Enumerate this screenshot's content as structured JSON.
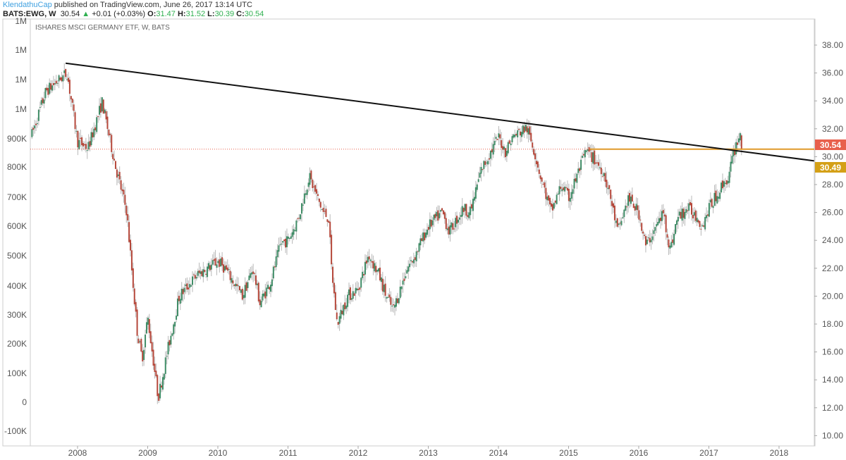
{
  "header": {
    "publisher": "KlendathuCap",
    "published_text": "published on TradingView.com, June 26, 2017 13:14 UTC",
    "symbol": "BATS:EWG, W",
    "last": "30.54",
    "change": "+0.01 (+0.03%)",
    "open_label": "O:",
    "open": "31.47",
    "high_label": "H:",
    "high": "31.52",
    "low_label": "L:",
    "low": "30.39",
    "close_label": "C:",
    "close": "30.54"
  },
  "chart_data": {
    "type": "candlestick",
    "title": "ISHARES MSCI GERMANY ETF, W, BATS",
    "x_ticks": [
      "2008",
      "2009",
      "2010",
      "2011",
      "2012",
      "2013",
      "2014",
      "2015",
      "2016",
      "2017",
      "2018"
    ],
    "right_axis_ticks": [
      "38.00",
      "36.00",
      "34.00",
      "32.00",
      "30.00",
      "28.00",
      "26.00",
      "24.00",
      "22.00",
      "20.00",
      "18.00",
      "16.00",
      "14.00",
      "12.00",
      "10.00"
    ],
    "left_axis_ticks": [
      "1M",
      "1M",
      "1M",
      "1M",
      "900K",
      "800K",
      "700K",
      "600K",
      "500K",
      "400K",
      "300K",
      "200K",
      "100K",
      "0",
      "-100K"
    ],
    "ylim": [
      9.2,
      39.8
    ],
    "xlim": [
      2007.33,
      2018.5
    ],
    "price_path": [
      [
        2007.35,
        31.6
      ],
      [
        2007.55,
        34.7
      ],
      [
        2007.85,
        36.0
      ],
      [
        2008.0,
        31.1
      ],
      [
        2008.15,
        30.6
      ],
      [
        2008.35,
        33.9
      ],
      [
        2008.55,
        29.1
      ],
      [
        2008.7,
        26.1
      ],
      [
        2008.78,
        21.5
      ],
      [
        2008.85,
        17.5
      ],
      [
        2008.92,
        15.5
      ],
      [
        2009.0,
        18.5
      ],
      [
        2009.15,
        12.7
      ],
      [
        2009.3,
        16.5
      ],
      [
        2009.45,
        20
      ],
      [
        2009.7,
        21.5
      ],
      [
        2010.0,
        22.5
      ],
      [
        2010.1,
        22
      ],
      [
        2010.35,
        20
      ],
      [
        2010.5,
        22
      ],
      [
        2010.6,
        19.5
      ],
      [
        2010.75,
        21
      ],
      [
        2010.9,
        23.8
      ],
      [
        2011.0,
        24
      ],
      [
        2011.15,
        25.6
      ],
      [
        2011.3,
        28.6
      ],
      [
        2011.5,
        26
      ],
      [
        2011.58,
        25.6
      ],
      [
        2011.62,
        22
      ],
      [
        2011.7,
        18
      ],
      [
        2011.85,
        20
      ],
      [
        2012.0,
        20.5
      ],
      [
        2012.15,
        23
      ],
      [
        2012.3,
        21.5
      ],
      [
        2012.4,
        20
      ],
      [
        2012.5,
        19
      ],
      [
        2012.7,
        22
      ],
      [
        2012.8,
        22.8
      ],
      [
        2013.0,
        25
      ],
      [
        2013.2,
        26
      ],
      [
        2013.3,
        24.6
      ],
      [
        2013.5,
        26.3
      ],
      [
        2013.6,
        26
      ],
      [
        2013.75,
        29
      ],
      [
        2014.0,
        31.4
      ],
      [
        2014.1,
        30.4
      ],
      [
        2014.2,
        31.4
      ],
      [
        2014.4,
        32.1
      ],
      [
        2014.5,
        30.6
      ],
      [
        2014.6,
        28.6
      ],
      [
        2014.75,
        26
      ],
      [
        2014.9,
        28
      ],
      [
        2015.0,
        27
      ],
      [
        2015.25,
        30.4
      ],
      [
        2015.35,
        29.9
      ],
      [
        2015.5,
        28.9
      ],
      [
        2015.6,
        27
      ],
      [
        2015.7,
        24.6
      ],
      [
        2015.85,
        27
      ],
      [
        2016.0,
        26
      ],
      [
        2016.1,
        23.6
      ],
      [
        2016.25,
        25
      ],
      [
        2016.35,
        26
      ],
      [
        2016.45,
        23.3
      ],
      [
        2016.55,
        25.6
      ],
      [
        2016.7,
        26.3
      ],
      [
        2016.85,
        25.6
      ],
      [
        2016.9,
        25
      ],
      [
        2017.0,
        26.3
      ],
      [
        2017.15,
        27.6
      ],
      [
        2017.25,
        28.4
      ],
      [
        2017.28,
        28.2
      ],
      [
        2017.32,
        29.6
      ],
      [
        2017.4,
        31.1
      ],
      [
        2017.45,
        31.6
      ],
      [
        2017.48,
        30.54
      ]
    ],
    "trendline": [
      [
        2007.83,
        36.7
      ],
      [
        2018.5,
        29.7
      ]
    ],
    "horizontal_line": {
      "from": 2015.3,
      "price": 30.54
    },
    "last_price_label": "30.54",
    "trendline_label": "30.49",
    "colors": {
      "up": "#3f8c66",
      "down": "#b5473a",
      "wick": "#b8b8b8",
      "trend": "#111111",
      "hline": "#e09a2a",
      "last": "#e8604c",
      "trendlabel": "#d4a017"
    }
  }
}
